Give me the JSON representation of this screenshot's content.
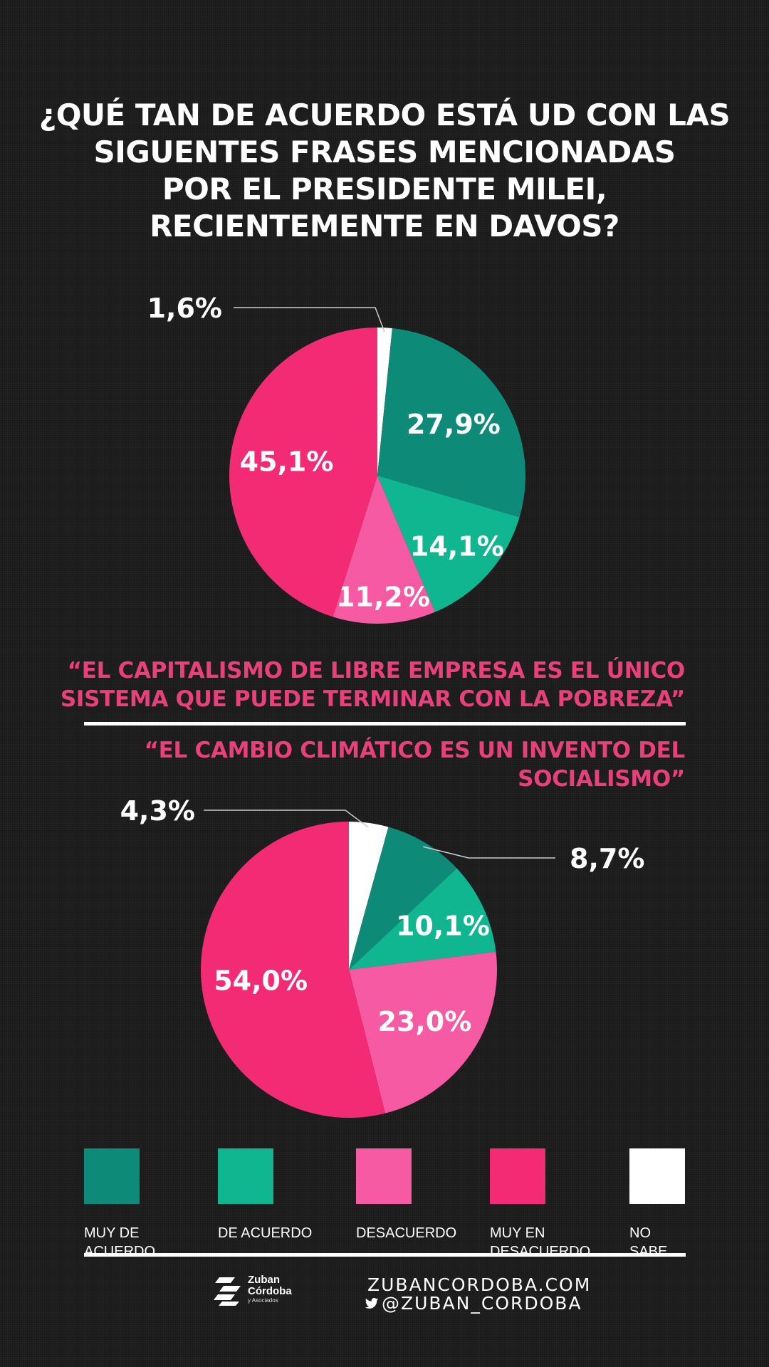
{
  "title_lines": [
    "¿QUÉ TAN DE ACUERDO ESTÁ UD CON LAS",
    "SIGUENTES FRASES MENCIONADAS",
    "POR EL PRESIDENTE MILEI,",
    "RECIENTEMENTE EN DAVOS?"
  ],
  "colors": {
    "muy_de_acuerdo": "#0e8a78",
    "de_acuerdo": "#10b68f",
    "desacuerdo": "#f55aa3",
    "muy_en_desacuerdo": "#f22b74",
    "no_sabe": "#ffffff",
    "quote": "#e8407a"
  },
  "chart_data": [
    {
      "type": "pie",
      "title": "“EL CAPITALISMO DE LIBRE EMPRESA ES EL ÚNICO SISTEMA QUE PUEDE TERMINAR CON LA POBREZA”",
      "categories": [
        "MUY DE ACUERDO",
        "DE ACUERDO",
        "DESACUERDO",
        "MUY EN DESACUERDO",
        "NO SABE"
      ],
      "values": [
        27.9,
        14.1,
        11.2,
        45.1,
        1.6
      ],
      "labels": [
        "27,9%",
        "14,1%",
        "11,2%",
        "45,1%",
        "1,6%"
      ],
      "colors": [
        "#0e8a78",
        "#10b68f",
        "#f55aa3",
        "#f22b74",
        "#ffffff"
      ],
      "start": "12 o'clock, clockwise"
    },
    {
      "type": "pie",
      "title": "“EL CAMBIO CLIMÁTICO ES UN INVENTO DEL SOCIALISMO”",
      "categories": [
        "MUY DE ACUERDO",
        "DE ACUERDO",
        "DESACUERDO",
        "MUY EN DESACUERDO",
        "NO SABE"
      ],
      "values": [
        8.7,
        10.1,
        23.0,
        54.0,
        4.3
      ],
      "labels": [
        "8,7%",
        "10,1%",
        "23,0%",
        "54,0%",
        "4,3%"
      ],
      "colors": [
        "#0e8a78",
        "#10b68f",
        "#f55aa3",
        "#f22b74",
        "#ffffff"
      ],
      "start": "12 o'clock, clockwise"
    }
  ],
  "quote1_lines": [
    "“EL CAPITALISMO DE LIBRE EMPRESA ES EL ÚNICO",
    "SISTEMA QUE PUEDE TERMINAR CON LA POBREZA”"
  ],
  "quote2_lines": [
    "“EL CAMBIO CLIMÁTICO ES UN INVENTO DEL",
    "SOCIALISMO”"
  ],
  "legend": [
    {
      "lines": [
        "MUY DE",
        "ACUERDO"
      ],
      "color": "#0e8a78"
    },
    {
      "lines": [
        "DE ACUERDO",
        ""
      ],
      "color": "#10b68f"
    },
    {
      "lines": [
        "DESACUERDO",
        ""
      ],
      "color": "#f55aa3"
    },
    {
      "lines": [
        "MUY EN",
        "DESACUERDO"
      ],
      "color": "#f22b74"
    },
    {
      "lines": [
        "NO",
        "SABE"
      ],
      "color": "#ffffff"
    }
  ],
  "footer": {
    "logo_line1": "Zuban",
    "logo_line2": "Córdoba",
    "logo_line3": "y Asociados",
    "website": "ZUBANCORDOBA.COM",
    "twitter": "@ZUBAN_CORDOBA",
    "twitter_icon": "twitter-bird-icon"
  }
}
